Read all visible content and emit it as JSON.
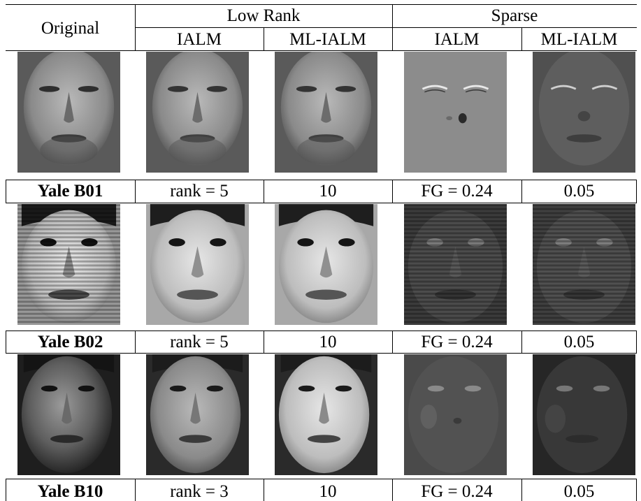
{
  "header": {
    "original": "Original",
    "low_rank": "Low Rank",
    "sparse": "Sparse",
    "lr_ialm": "IALM",
    "lr_mlialm": "ML-IALM",
    "sp_ialm": "IALM",
    "sp_mlialm": "ML-IALM"
  },
  "rows": [
    {
      "name": "Yale B01",
      "lr_ialm": "rank = 5",
      "lr_mlialm": "10",
      "sp_ialm": "FG = 0.24",
      "sp_mlialm": "0.05"
    },
    {
      "name": "Yale B02",
      "lr_ialm": "rank = 5",
      "lr_mlialm": "10",
      "sp_ialm": "FG = 0.24",
      "sp_mlialm": "0.05"
    },
    {
      "name": "Yale B10",
      "lr_ialm": "rank = 3",
      "lr_mlialm": "10",
      "sp_ialm": "FG = 0.24",
      "sp_mlialm": "0.05"
    }
  ]
}
